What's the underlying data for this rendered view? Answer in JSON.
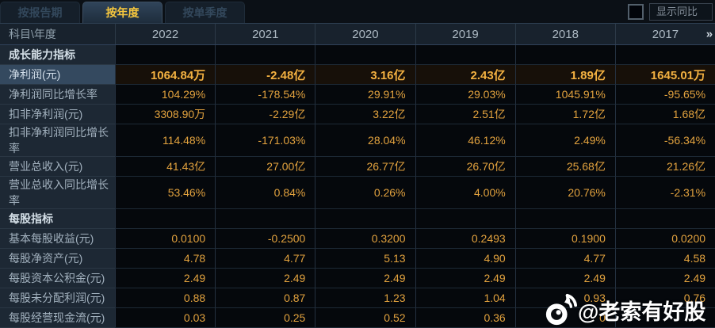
{
  "tabs": [
    {
      "label": "按报告期",
      "active": false
    },
    {
      "label": "按年度",
      "active": true
    },
    {
      "label": "按单季度",
      "active": false
    }
  ],
  "controls": {
    "show_yoy_label": "显示同比",
    "checkbox_checked": false
  },
  "table": {
    "corner_label": "科目\\年度",
    "years": [
      "2022",
      "2021",
      "2020",
      "2019",
      "2018",
      "2017"
    ],
    "more_icon": "»",
    "rows": [
      {
        "type": "section",
        "label": "成长能力指标",
        "values": [
          "",
          "",
          "",
          "",
          "",
          ""
        ]
      },
      {
        "type": "data",
        "highlight": true,
        "label": "净利润(元)",
        "values": [
          "1064.84万",
          "-2.48亿",
          "3.16亿",
          "2.43亿",
          "1.89亿",
          "1645.01万"
        ]
      },
      {
        "type": "data",
        "label": "净利润同比增长率",
        "values": [
          "104.29%",
          "-178.54%",
          "29.91%",
          "29.03%",
          "1045.91%",
          "-95.65%"
        ]
      },
      {
        "type": "data",
        "label": "扣非净利润(元)",
        "values": [
          "3308.90万",
          "-2.29亿",
          "3.22亿",
          "2.51亿",
          "1.72亿",
          "1.68亿"
        ]
      },
      {
        "type": "data",
        "label": "扣非净利润同比增长率",
        "values": [
          "114.48%",
          "-171.03%",
          "28.04%",
          "46.12%",
          "2.49%",
          "-56.34%"
        ]
      },
      {
        "type": "data",
        "label": "营业总收入(元)",
        "values": [
          "41.43亿",
          "27.00亿",
          "26.77亿",
          "26.70亿",
          "25.68亿",
          "21.26亿"
        ]
      },
      {
        "type": "data",
        "label": "营业总收入同比增长率",
        "values": [
          "53.46%",
          "0.84%",
          "0.26%",
          "4.00%",
          "20.76%",
          "-2.31%"
        ]
      },
      {
        "type": "section",
        "label": "每股指标",
        "values": [
          "",
          "",
          "",
          "",
          "",
          ""
        ]
      },
      {
        "type": "data",
        "label": "基本每股收益(元)",
        "values": [
          "0.0100",
          "-0.2500",
          "0.3200",
          "0.2493",
          "0.1900",
          "0.0200"
        ]
      },
      {
        "type": "data",
        "label": "每股净资产(元)",
        "values": [
          "4.78",
          "4.77",
          "5.13",
          "4.90",
          "4.77",
          "4.58"
        ]
      },
      {
        "type": "data",
        "label": "每股资本公积金(元)",
        "values": [
          "2.49",
          "2.49",
          "2.49",
          "2.49",
          "2.49",
          "2.49"
        ]
      },
      {
        "type": "data",
        "label": "每股未分配利润(元)",
        "values": [
          "0.88",
          "0.87",
          "1.23",
          "1.04",
          "0.93",
          "0.76"
        ]
      },
      {
        "type": "data",
        "label": "每股经营现金流(元)",
        "values": [
          "0.03",
          "0.25",
          "0.52",
          "0.36",
          "0",
          ""
        ]
      }
    ]
  },
  "watermark": {
    "text": "@老索有好股"
  },
  "colors": {
    "value_gold": "#e2a23e",
    "highlight_gold": "#f3b141",
    "active_tab_text": "#f7c83e",
    "label_column_bg": "#1d2834",
    "highlight_row_label_bg": "#34495f",
    "highlight_row_cell_bg": "#171009",
    "cell_bg": "#05080c",
    "header_row_bg": "#18222d",
    "watermark_color": "#ffffff"
  }
}
